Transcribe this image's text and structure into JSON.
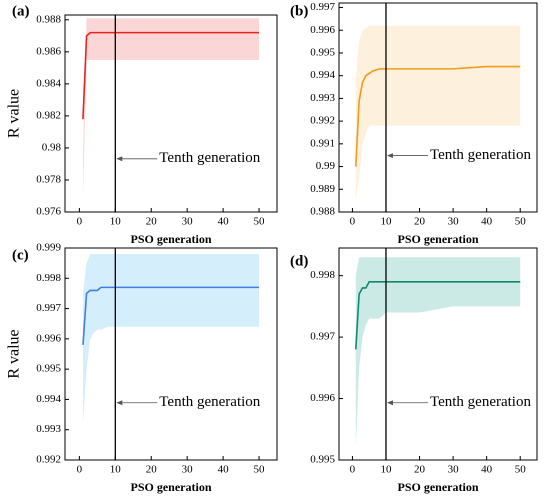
{
  "chart_data": [
    {
      "type": "line",
      "label": "(a)",
      "xlabel": "PSO generation",
      "ylabel": "R value",
      "x": [
        1,
        2,
        3,
        4,
        5,
        6,
        8,
        10,
        20,
        30,
        40,
        50
      ],
      "series": [
        {
          "color": "#e8231e",
          "values": [
            0.9818,
            0.987,
            0.9872,
            0.9872,
            0.9872,
            0.9872,
            0.9872,
            0.9872,
            0.9872,
            0.9872,
            0.9872,
            0.9872
          ]
        }
      ],
      "band": {
        "color": "#fad6d6",
        "upper": [
          0.9795,
          0.9881,
          0.9881,
          0.9881,
          0.9881,
          0.9881,
          0.9881,
          0.9881,
          0.9881,
          0.9881,
          0.9881,
          0.9881
        ],
        "lower": [
          0.977,
          0.9855,
          0.9855,
          0.9855,
          0.9855,
          0.9855,
          0.9855,
          0.9855,
          0.9855,
          0.9855,
          0.9855,
          0.9855
        ]
      },
      "annotation": {
        "text": "Tenth generation",
        "x": 10
      },
      "xlim": [
        -4,
        55
      ],
      "ylim": [
        0.976,
        0.9883
      ],
      "xticks": [
        0,
        10,
        20,
        30,
        40,
        50
      ],
      "yticks": [
        0.976,
        0.978,
        0.98,
        0.982,
        0.984,
        0.986,
        0.988
      ]
    },
    {
      "type": "line",
      "label": "(b)",
      "xlabel": "PSO generation",
      "x": [
        1,
        2,
        3,
        4,
        5,
        6,
        8,
        10,
        20,
        30,
        40,
        50
      ],
      "series": [
        {
          "color": "#f29b16",
          "values": [
            0.99,
            0.9929,
            0.9937,
            0.994,
            0.9941,
            0.9942,
            0.9943,
            0.9943,
            0.9943,
            0.9943,
            0.9944,
            0.9944
          ]
        }
      ],
      "band": {
        "color": "#fdf0dc",
        "upper": [
          0.9938,
          0.9955,
          0.996,
          0.9961,
          0.9962,
          0.9962,
          0.9962,
          0.9962,
          0.9962,
          0.9962,
          0.9962,
          0.9962
        ],
        "lower": [
          0.9885,
          0.9895,
          0.991,
          0.9915,
          0.9918,
          0.9918,
          0.9918,
          0.9918,
          0.9918,
          0.9918,
          0.9918,
          0.9918
        ]
      },
      "annotation": {
        "text": "Tenth generation",
        "x": 10
      },
      "xlim": [
        -4,
        55
      ],
      "ylim": [
        0.988,
        0.9972
      ],
      "xticks": [
        0,
        10,
        20,
        30,
        40,
        50
      ],
      "yticks": [
        0.988,
        0.989,
        0.99,
        0.991,
        0.992,
        0.993,
        0.994,
        0.995,
        0.996,
        0.997
      ]
    },
    {
      "type": "line",
      "label": "(c)",
      "xlabel": "PSO generation",
      "ylabel": "R value",
      "x": [
        1,
        2,
        3,
        4,
        5,
        6,
        8,
        10,
        20,
        30,
        40,
        50
      ],
      "series": [
        {
          "color": "#3f7fe0",
          "values": [
            0.9958,
            0.9975,
            0.9976,
            0.9976,
            0.9976,
            0.9977,
            0.9977,
            0.9977,
            0.9977,
            0.9977,
            0.9977,
            0.9977
          ]
        }
      ],
      "band": {
        "color": "#d5eefc",
        "upper": [
          0.9975,
          0.9985,
          0.9988,
          0.9988,
          0.9988,
          0.9988,
          0.9988,
          0.9988,
          0.9988,
          0.9988,
          0.9988,
          0.9988
        ],
        "lower": [
          0.9932,
          0.995,
          0.996,
          0.9962,
          0.9963,
          0.9963,
          0.9964,
          0.9964,
          0.9964,
          0.9964,
          0.9964,
          0.9964
        ]
      },
      "annotation": {
        "text": "Tenth generation",
        "x": 10
      },
      "xlim": [
        -4,
        55
      ],
      "ylim": [
        0.992,
        0.999
      ],
      "xticks": [
        0,
        10,
        20,
        30,
        40,
        50
      ],
      "yticks": [
        0.992,
        0.993,
        0.994,
        0.995,
        0.996,
        0.997,
        0.998,
        0.999
      ]
    },
    {
      "type": "line",
      "label": "(d)",
      "xlabel": "PSO generation",
      "x": [
        1,
        2,
        3,
        4,
        5,
        6,
        8,
        10,
        20,
        30,
        40,
        50
      ],
      "series": [
        {
          "color": "#0f8a6e",
          "values": [
            0.9968,
            0.9977,
            0.9978,
            0.9978,
            0.9979,
            0.9979,
            0.9979,
            0.9979,
            0.9979,
            0.9979,
            0.9979,
            0.9979
          ]
        }
      ],
      "band": {
        "color": "#cbe9e5",
        "upper": [
          0.998,
          0.9983,
          0.9983,
          0.9983,
          0.9983,
          0.9983,
          0.9983,
          0.9983,
          0.9983,
          0.9983,
          0.9983,
          0.9983
        ],
        "lower": [
          0.9952,
          0.9965,
          0.997,
          0.9972,
          0.9973,
          0.9973,
          0.9973,
          0.9974,
          0.9974,
          0.9975,
          0.9975,
          0.9975
        ]
      },
      "annotation": {
        "text": "Tenth generation",
        "x": 10
      },
      "xlim": [
        -4,
        55
      ],
      "ylim": [
        0.995,
        0.99845
      ],
      "xticks": [
        0,
        10,
        20,
        30,
        40,
        50
      ],
      "yticks": [
        0.995,
        0.996,
        0.997,
        0.998
      ]
    }
  ]
}
